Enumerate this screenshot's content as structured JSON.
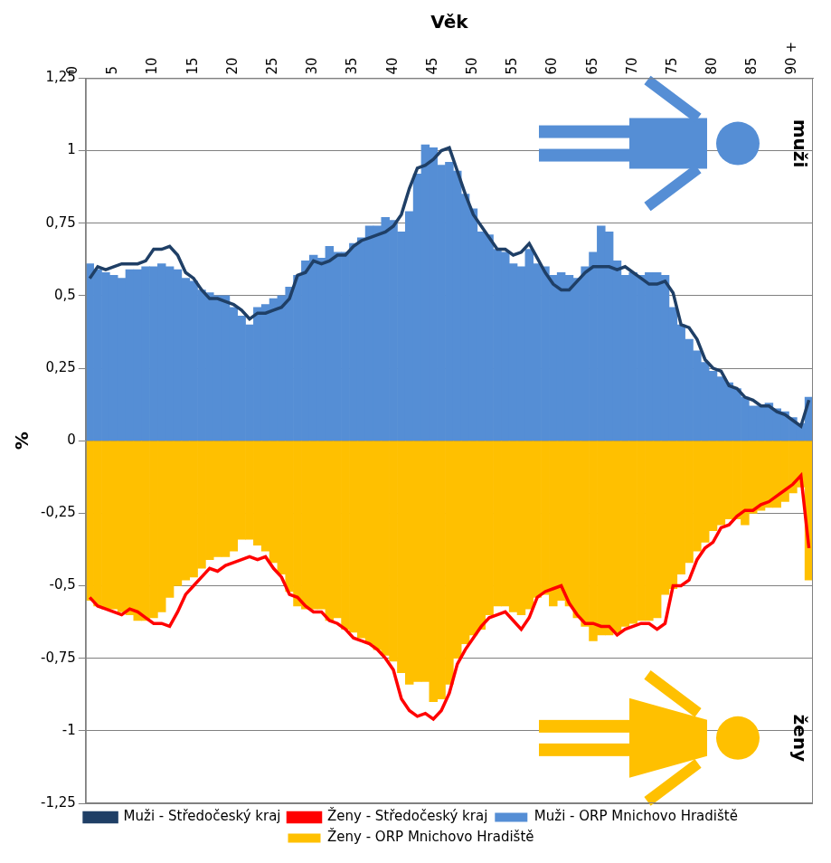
{
  "chart_data": {
    "type": "bar",
    "x_label": "Věk",
    "y_label": "%",
    "categories": [
      "0",
      null,
      null,
      null,
      null,
      "5",
      null,
      null,
      null,
      null,
      "10",
      null,
      null,
      null,
      null,
      "15",
      null,
      null,
      null,
      null,
      "20",
      null,
      null,
      null,
      null,
      "25",
      null,
      null,
      null,
      null,
      "30",
      null,
      null,
      null,
      null,
      "35",
      null,
      null,
      null,
      null,
      "40",
      null,
      null,
      null,
      null,
      "45",
      null,
      null,
      null,
      null,
      "50",
      null,
      null,
      null,
      null,
      "55",
      null,
      null,
      null,
      null,
      "60",
      null,
      null,
      null,
      null,
      "65",
      null,
      null,
      null,
      null,
      "70",
      null,
      null,
      null,
      null,
      "75",
      null,
      null,
      null,
      null,
      "80",
      null,
      null,
      null,
      null,
      "85",
      null,
      null,
      null,
      null,
      "90 +"
    ],
    "ylim": [
      -1.25,
      1.25
    ],
    "yticks": [
      {
        "value": -1.25,
        "label": "-1,25"
      },
      {
        "value": -1,
        "label": "-1"
      },
      {
        "value": -0.75,
        "label": "-0,75"
      },
      {
        "value": -0.5,
        "label": "-0,5"
      },
      {
        "value": -0.25,
        "label": "-0,25"
      },
      0,
      {
        "value": 0.25,
        "label": "0,25"
      },
      {
        "value": 0.5,
        "label": "0,5"
      },
      {
        "value": 0.75,
        "label": "0,75"
      },
      1,
      {
        "value": 1.25,
        "label": "1,25"
      }
    ],
    "grid": "y",
    "legend": "bottom",
    "stacked": false,
    "annotations": [
      "muži",
      "ženy"
    ],
    "series": [
      {
        "name": "Muži - ORP Mnichovo Hradiště",
        "type": "bar",
        "color": "#558ed5",
        "values": [
          0.61,
          0.59,
          0.58,
          0.57,
          0.56,
          0.59,
          0.59,
          0.6,
          0.6,
          0.61,
          0.6,
          0.59,
          0.56,
          0.55,
          0.52,
          0.51,
          0.5,
          0.5,
          0.46,
          0.43,
          0.4,
          0.46,
          0.47,
          0.49,
          0.5,
          0.53,
          0.57,
          0.62,
          0.64,
          0.63,
          0.67,
          0.65,
          0.65,
          0.68,
          0.7,
          0.74,
          0.74,
          0.77,
          0.76,
          0.72,
          0.79,
          0.92,
          1.02,
          1.01,
          0.95,
          0.96,
          0.93,
          0.85,
          0.8,
          0.72,
          0.71,
          0.66,
          0.65,
          0.61,
          0.6,
          0.66,
          0.61,
          0.6,
          0.57,
          0.58,
          0.57,
          0.56,
          0.6,
          0.65,
          0.74,
          0.72,
          0.62,
          0.57,
          0.58,
          0.57,
          0.58,
          0.58,
          0.57,
          0.46,
          0.4,
          0.35,
          0.31,
          0.27,
          0.24,
          0.22,
          0.2,
          0.18,
          0.15,
          0.12,
          0.12,
          0.13,
          0.11,
          0.1,
          0.08,
          0.06,
          0.15
        ]
      },
      {
        "name": "Ženy - ORP Mnichovo Hradiště",
        "type": "bar",
        "color": "#ffc000",
        "values": [
          -0.55,
          -0.57,
          -0.58,
          -0.58,
          -0.59,
          -0.6,
          -0.62,
          -0.62,
          -0.61,
          -0.59,
          -0.54,
          -0.5,
          -0.48,
          -0.47,
          -0.44,
          -0.41,
          -0.4,
          -0.4,
          -0.38,
          -0.34,
          -0.34,
          -0.36,
          -0.38,
          -0.42,
          -0.46,
          -0.52,
          -0.57,
          -0.58,
          -0.58,
          -0.58,
          -0.62,
          -0.61,
          -0.65,
          -0.66,
          -0.68,
          -0.7,
          -0.72,
          -0.74,
          -0.76,
          -0.8,
          -0.84,
          -0.83,
          -0.83,
          -0.9,
          -0.89,
          -0.84,
          -0.75,
          -0.7,
          -0.67,
          -0.65,
          -0.6,
          -0.57,
          -0.57,
          -0.59,
          -0.6,
          -0.58,
          -0.54,
          -0.53,
          -0.57,
          -0.55,
          -0.57,
          -0.61,
          -0.64,
          -0.69,
          -0.67,
          -0.67,
          -0.66,
          -0.64,
          -0.63,
          -0.62,
          -0.62,
          -0.61,
          -0.53,
          -0.51,
          -0.46,
          -0.42,
          -0.38,
          -0.35,
          -0.31,
          -0.29,
          -0.27,
          -0.27,
          -0.29,
          -0.25,
          -0.24,
          -0.23,
          -0.23,
          -0.21,
          -0.18,
          -0.16,
          -0.48
        ]
      },
      {
        "name": "Muži - Středočeský kraj",
        "type": "line",
        "color": "#1f3f66",
        "values": [
          0.56,
          0.6,
          0.59,
          0.6,
          0.61,
          0.61,
          0.61,
          0.62,
          0.66,
          0.66,
          0.67,
          0.64,
          0.58,
          0.56,
          0.52,
          0.49,
          0.49,
          0.48,
          0.47,
          0.45,
          0.42,
          0.44,
          0.44,
          0.45,
          0.46,
          0.49,
          0.57,
          0.58,
          0.62,
          0.61,
          0.62,
          0.64,
          0.64,
          0.67,
          0.69,
          0.7,
          0.71,
          0.72,
          0.74,
          0.78,
          0.87,
          0.94,
          0.95,
          0.97,
          1.0,
          1.01,
          0.93,
          0.85,
          0.78,
          0.74,
          0.7,
          0.66,
          0.66,
          0.64,
          0.65,
          0.68,
          0.63,
          0.58,
          0.54,
          0.52,
          0.52,
          0.55,
          0.58,
          0.6,
          0.6,
          0.6,
          0.59,
          0.6,
          0.58,
          0.56,
          0.54,
          0.54,
          0.55,
          0.51,
          0.4,
          0.39,
          0.35,
          0.28,
          0.25,
          0.24,
          0.19,
          0.18,
          0.15,
          0.14,
          0.12,
          0.12,
          0.1,
          0.09,
          0.07,
          0.05,
          0.14
        ]
      },
      {
        "name": "Ženy - Středočeský kraj",
        "type": "line",
        "color": "#ff0000",
        "values": [
          -0.54,
          -0.57,
          -0.58,
          -0.59,
          -0.6,
          -0.58,
          -0.59,
          -0.61,
          -0.63,
          -0.63,
          -0.64,
          -0.59,
          -0.53,
          -0.5,
          -0.47,
          -0.44,
          -0.45,
          -0.43,
          -0.42,
          -0.41,
          -0.4,
          -0.41,
          -0.4,
          -0.44,
          -0.47,
          -0.53,
          -0.54,
          -0.57,
          -0.59,
          -0.59,
          -0.62,
          -0.63,
          -0.65,
          -0.68,
          -0.69,
          -0.7,
          -0.72,
          -0.75,
          -0.79,
          -0.89,
          -0.93,
          -0.95,
          -0.94,
          -0.96,
          -0.93,
          -0.87,
          -0.77,
          -0.72,
          -0.68,
          -0.64,
          -0.61,
          -0.6,
          -0.59,
          -0.62,
          -0.65,
          -0.61,
          -0.54,
          -0.52,
          -0.51,
          -0.5,
          -0.56,
          -0.6,
          -0.63,
          -0.63,
          -0.64,
          -0.64,
          -0.67,
          -0.65,
          -0.64,
          -0.63,
          -0.63,
          -0.65,
          -0.63,
          -0.5,
          -0.5,
          -0.48,
          -0.41,
          -0.37,
          -0.35,
          -0.3,
          -0.29,
          -0.26,
          -0.24,
          -0.24,
          -0.22,
          -0.21,
          -0.19,
          -0.17,
          -0.15,
          -0.12,
          -0.37
        ]
      }
    ]
  }
}
